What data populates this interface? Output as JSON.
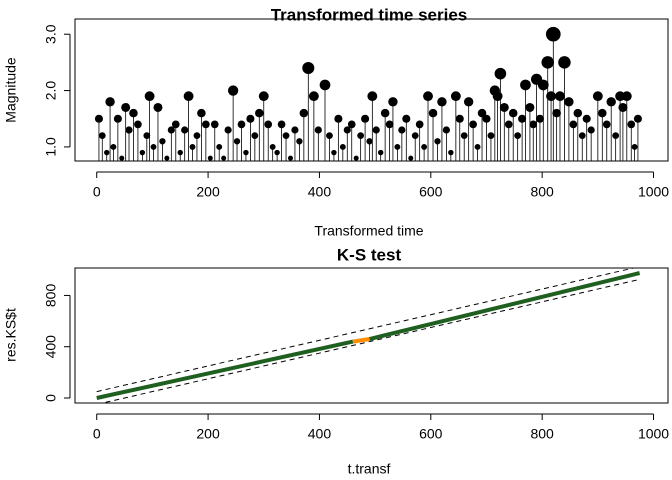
{
  "chart_data": [
    {
      "type": "stem",
      "title": "Transformed time series",
      "xlabel": "Transformed time",
      "ylabel": "Magnitude",
      "x": [
        4,
        10,
        18,
        24,
        30,
        38,
        45,
        52,
        58,
        66,
        74,
        82,
        90,
        95,
        102,
        110,
        118,
        126,
        134,
        142,
        150,
        158,
        165,
        172,
        180,
        188,
        196,
        204,
        212,
        220,
        228,
        236,
        245,
        252,
        260,
        268,
        276,
        284,
        292,
        300,
        308,
        316,
        324,
        332,
        340,
        348,
        356,
        364,
        372,
        380,
        390,
        398,
        410,
        418,
        426,
        434,
        442,
        450,
        458,
        466,
        474,
        482,
        490,
        495,
        502,
        510,
        518,
        526,
        532,
        540,
        548,
        556,
        564,
        572,
        580,
        588,
        595,
        604,
        612,
        620,
        628,
        636,
        645,
        652,
        660,
        668,
        676,
        684,
        692,
        700,
        708,
        715,
        720,
        725,
        732,
        740,
        748,
        756,
        764,
        770,
        778,
        784,
        790,
        796,
        802,
        810,
        816,
        820,
        826,
        832,
        840,
        848,
        856,
        864,
        872,
        880,
        888,
        900,
        908,
        916,
        924,
        932,
        940,
        945,
        952,
        960,
        966,
        972
      ],
      "values": [
        1.5,
        1.2,
        0.9,
        1.8,
        1.0,
        1.5,
        0.8,
        1.7,
        1.3,
        1.6,
        1.4,
        0.9,
        1.2,
        1.9,
        1.0,
        1.7,
        1.1,
        0.8,
        1.3,
        1.4,
        0.9,
        1.3,
        1.9,
        1.0,
        1.2,
        1.6,
        1.4,
        0.8,
        1.4,
        1.0,
        0.8,
        1.3,
        2.0,
        1.1,
        1.4,
        0.9,
        1.5,
        1.2,
        1.6,
        1.9,
        1.4,
        1.0,
        0.9,
        1.4,
        1.2,
        0.8,
        1.3,
        1.1,
        1.6,
        2.4,
        1.9,
        1.3,
        2.1,
        1.2,
        0.9,
        1.5,
        1.0,
        1.3,
        1.4,
        0.8,
        1.2,
        1.5,
        1.1,
        1.9,
        1.3,
        0.9,
        1.6,
        1.4,
        1.8,
        1.0,
        1.3,
        1.5,
        0.8,
        1.2,
        1.4,
        1.0,
        1.9,
        1.6,
        1.1,
        1.8,
        1.3,
        0.9,
        1.9,
        1.5,
        1.2,
        1.8,
        1.4,
        1.0,
        1.6,
        1.5,
        1.2,
        2.0,
        1.9,
        2.3,
        1.7,
        1.4,
        1.6,
        1.2,
        1.5,
        2.1,
        1.7,
        1.4,
        2.2,
        1.5,
        2.1,
        2.5,
        1.9,
        3.0,
        1.6,
        1.9,
        2.5,
        1.8,
        1.4,
        1.6,
        1.2,
        1.5,
        1.3,
        1.9,
        1.6,
        1.4,
        1.8,
        1.2,
        1.9,
        1.7,
        1.9,
        1.4,
        1.0,
        1.5
      ],
      "color": "#000000",
      "xlim": [
        -39,
        1026
      ],
      "xticks": [
        0,
        200,
        400,
        600,
        800,
        1000
      ],
      "ylim": [
        0.75,
        3.27
      ],
      "yticks": [
        {
          "value": 1,
          "label": "1.0"
        },
        {
          "value": 2,
          "label": "2.0"
        },
        {
          "value": 3,
          "label": "3.0"
        }
      ]
    },
    {
      "type": "line",
      "title": "K-S test",
      "xlabel": "t.transf",
      "ylabel": "res.KS$t",
      "series": [
        {
          "color": "#1f5f1f",
          "dash": false,
          "x": [
            0,
            460
          ],
          "values": [
            0,
            440
          ]
        },
        {
          "color": "#ff8c00",
          "dash": false,
          "x": [
            460,
            490
          ],
          "values": [
            440,
            460
          ]
        },
        {
          "color": "#1f5f1f",
          "dash": false,
          "x": [
            490,
            975
          ],
          "values": [
            460,
            975
          ]
        },
        {
          "color": "#000000",
          "dash": true,
          "x": [
            0,
            975
          ],
          "values": [
            50,
            1025
          ]
        },
        {
          "color": "#000000",
          "dash": true,
          "x": [
            0,
            975
          ],
          "values": [
            -50,
            925
          ]
        }
      ],
      "xlim": [
        -39,
        1026
      ],
      "xticks": [
        0,
        200,
        400,
        600,
        800,
        1000
      ],
      "ylim": [
        -39,
        1014
      ],
      "yticks": [
        0,
        400,
        800
      ]
    }
  ]
}
